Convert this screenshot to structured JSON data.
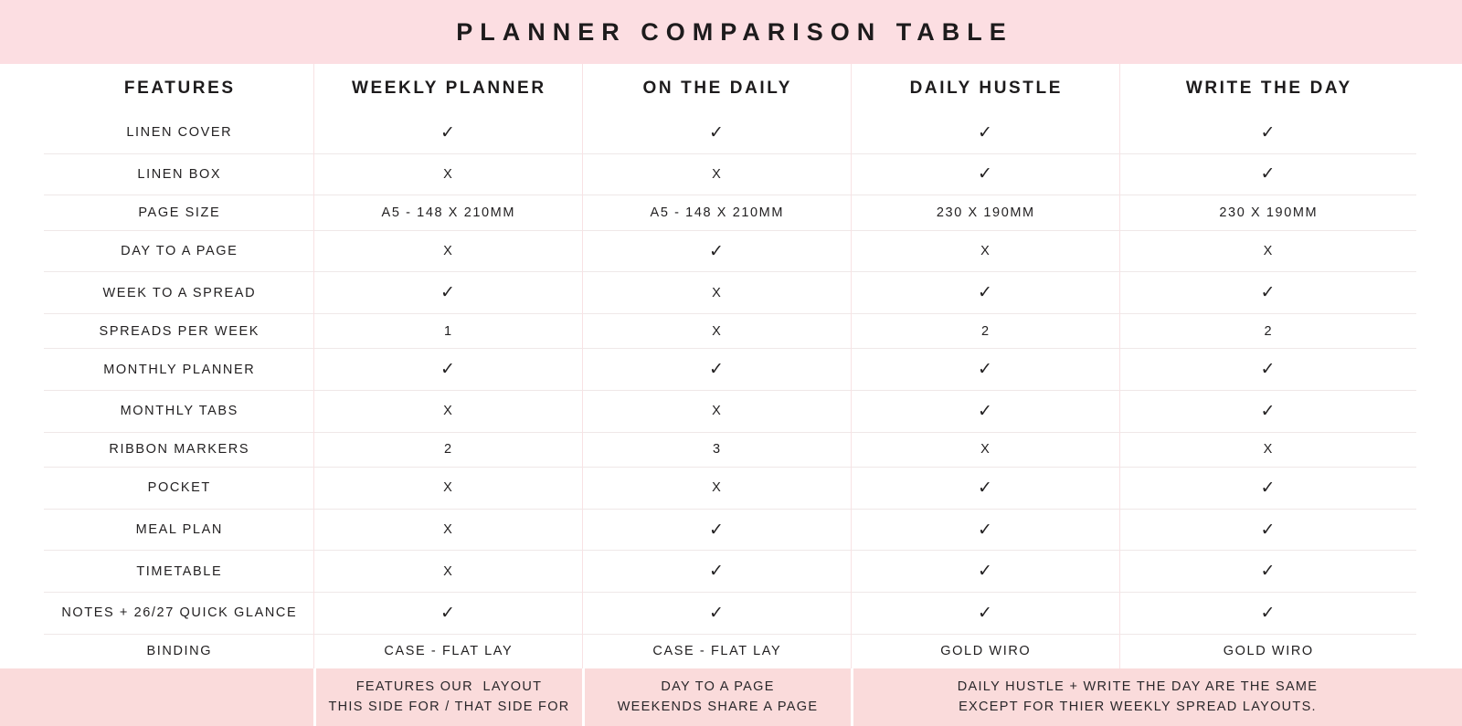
{
  "title": "PLANNER COMPARISON TABLE",
  "colors": {
    "header_bg": "#fcdee2",
    "footer_bg": "#fadbdb",
    "text": "#232122",
    "row_line": "#efe8e8",
    "col_line": "#f8e2e4"
  },
  "glyphs": {
    "yes": "✓",
    "no": "X"
  },
  "table": {
    "columns": [
      "FEATURES",
      "WEEKLY PLANNER",
      "ON THE DAILY",
      "DAILY HUSTLE",
      "WRITE THE DAY"
    ],
    "rows": [
      {
        "feature": "LINEN COVER",
        "values": [
          "✓",
          "✓",
          "✓",
          "✓"
        ]
      },
      {
        "feature": "LINEN BOX",
        "values": [
          "X",
          "X",
          "✓",
          "✓"
        ]
      },
      {
        "feature": "PAGE SIZE",
        "values": [
          "A5 - 148 X 210MM",
          "A5 - 148 X 210MM",
          "230 X 190MM",
          "230 X 190MM"
        ]
      },
      {
        "feature": "DAY TO A PAGE",
        "values": [
          "X",
          "✓",
          "X",
          "X"
        ]
      },
      {
        "feature": "WEEK TO A SPREAD",
        "values": [
          "✓",
          "X",
          "✓",
          "✓"
        ]
      },
      {
        "feature": "SPREADS PER WEEK",
        "values": [
          "1",
          "X",
          "2",
          "2"
        ]
      },
      {
        "feature": "MONTHLY PLANNER",
        "values": [
          "✓",
          "✓",
          "✓",
          "✓"
        ]
      },
      {
        "feature": "MONTHLY TABS",
        "values": [
          "X",
          "X",
          "✓",
          "✓"
        ]
      },
      {
        "feature": "RIBBON MARKERS",
        "values": [
          "2",
          "3",
          "X",
          "X"
        ]
      },
      {
        "feature": "POCKET",
        "values": [
          "X",
          "X",
          "✓",
          "✓"
        ]
      },
      {
        "feature": "MEAL PLAN",
        "values": [
          "X",
          "✓",
          "✓",
          "✓"
        ]
      },
      {
        "feature": "TIMETABLE",
        "values": [
          "X",
          "✓",
          "✓",
          "✓"
        ]
      },
      {
        "feature": "NOTES + 26/27 QUICK GLANCE",
        "values": [
          "✓",
          "✓",
          "✓",
          "✓"
        ]
      },
      {
        "feature": "BINDING",
        "values": [
          "CASE - FLAT LAY",
          "CASE - FLAT LAY",
          "GOLD WIRO",
          "GOLD WIRO"
        ]
      }
    ]
  },
  "footer": {
    "notes": [
      {
        "name": "weekly-planner-note",
        "text": "FEATURES OUR  LAYOUT\nTHIS SIDE FOR / THAT SIDE FOR"
      },
      {
        "name": "on-the-daily-note",
        "text": "DAY TO A PAGE\nWEEKENDS SHARE A PAGE"
      },
      {
        "name": "daily-hustle-write-the-day-note",
        "text": "DAILY HUSTLE + WRITE THE DAY ARE THE SAME\nEXCEPT FOR THIER WEEKLY SPREAD LAYOUTS."
      }
    ]
  }
}
